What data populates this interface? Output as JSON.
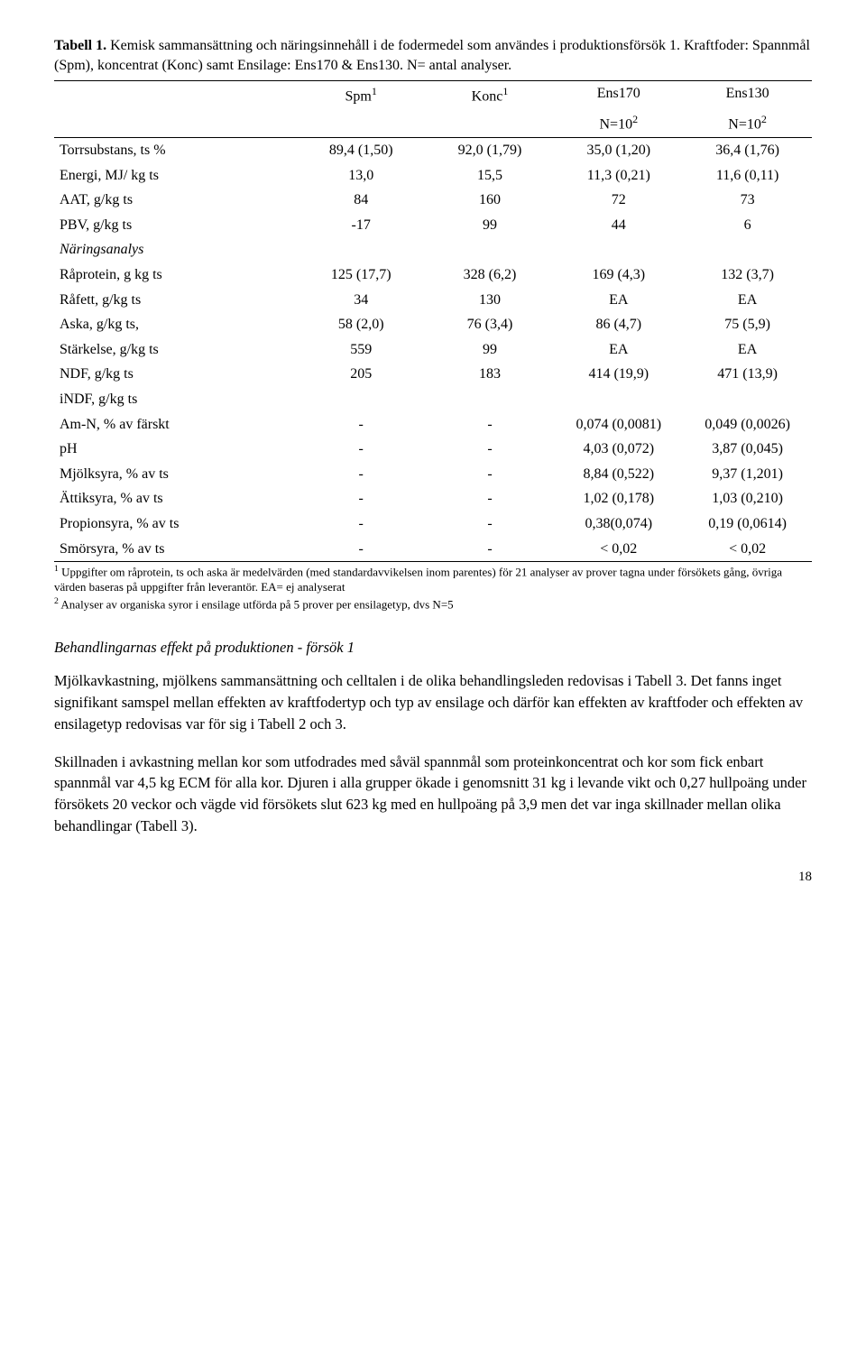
{
  "caption": {
    "label": "Tabell 1.",
    "text": " Kemisk sammansättning och näringsinnehåll i de fodermedel som användes i produktionsförsök 1. Kraftfoder: Spannmål (Spm), koncentrat (Konc) samt Ensilage: Ens170 & Ens130. N= antal analyser."
  },
  "table": {
    "col_widths": [
      "32%",
      "17%",
      "17%",
      "17%",
      "17%"
    ],
    "header": {
      "c1": "",
      "c2": "Spm",
      "c2_sup": "1",
      "c3": "Konc",
      "c3_sup": "1",
      "c4": "Ens170",
      "c5": "Ens130"
    },
    "subheader": {
      "c4": "N=10",
      "c4_sup": "2",
      "c5": "N=10",
      "c5_sup": "2"
    },
    "rows": [
      {
        "label": "Torrsubstans, ts %",
        "c2": "89,4 (1,50)",
        "c3": "92,0 (1,79)",
        "c4": "35,0 (1,20)",
        "c5": "36,4 (1,76)"
      },
      {
        "label": "Energi, MJ/ kg ts",
        "c2": "13,0",
        "c3": "15,5",
        "c4": "11,3 (0,21)",
        "c5": "11,6 (0,11)"
      },
      {
        "label": "AAT, g/kg ts",
        "c2": "84",
        "c3": "160",
        "c4": "72",
        "c5": "73"
      },
      {
        "label": "PBV, g/kg ts",
        "c2": "-17",
        "c3": "99",
        "c4": "44",
        "c5": "6"
      },
      {
        "label": "Näringsanalys",
        "italic": true,
        "c2": "",
        "c3": "",
        "c4": "",
        "c5": ""
      },
      {
        "label": "Råprotein, g kg ts",
        "c2": "125 (17,7)",
        "c3": "328 (6,2)",
        "c4": "169 (4,3)",
        "c5": "132 (3,7)"
      },
      {
        "label": "Råfett, g/kg ts",
        "c2": "34",
        "c3": "130",
        "c4": "EA",
        "c5": "EA"
      },
      {
        "label": "Aska, g/kg ts,",
        "c2": "58 (2,0)",
        "c3": "76 (3,4)",
        "c4": "86 (4,7)",
        "c5": "75 (5,9)"
      },
      {
        "label": "Stärkelse, g/kg ts",
        "c2": "559",
        "c3": "99",
        "c4": "EA",
        "c5": "EA"
      },
      {
        "label": "NDF, g/kg ts",
        "c2": "205",
        "c3": "183",
        "c4": "414 (19,9)",
        "c5": "471 (13,9)"
      },
      {
        "label": "iNDF, g/kg ts",
        "c2": "",
        "c3": "",
        "c4": "",
        "c5": ""
      },
      {
        "label": "Am-N, % av färskt",
        "c2": "-",
        "c3": "-",
        "c4": "0,074 (0,0081)",
        "c5": "0,049 (0,0026)"
      },
      {
        "label": "pH",
        "c2": "-",
        "c3": "-",
        "c4": "4,03 (0,072)",
        "c5": "3,87 (0,045)"
      },
      {
        "label": "Mjölksyra, % av ts",
        "c2": "-",
        "c3": "-",
        "c4": "8,84 (0,522)",
        "c5": "9,37 (1,201)"
      },
      {
        "label": "Ättiksyra, % av ts",
        "c2": "-",
        "c3": "-",
        "c4": "1,02 (0,178)",
        "c5": "1,03 (0,210)"
      },
      {
        "label": "Propionsyra, % av ts",
        "c2": "-",
        "c3": "-",
        "c4": "0,38(0,074)",
        "c5": "0,19 (0,0614)"
      },
      {
        "label": "Smörsyra, % av ts",
        "c2": "-",
        "c3": "-",
        "c4": "< 0,02",
        "c5": "< 0,02",
        "last": true
      }
    ]
  },
  "footnotes": {
    "f1_sup": "1",
    "f1": " Uppgifter om råprotein, ts och aska är medelvärden (med standardavvikelsen inom parentes) för 21 analyser av prover tagna under försökets gång, övriga värden baseras på uppgifter från leverantör. EA= ej analyserat",
    "f2_sup": "2",
    "f2": " Analyser av organiska syror i ensilage utförda på 5 prover per ensilagetyp, dvs N=5"
  },
  "section_heading": "Behandlingarnas effekt på produktionen - försök 1",
  "para1": "Mjölkavkastning, mjölkens sammansättning och celltalen i de olika behandlingsleden redovisas i Tabell 3. Det fanns inget signifikant samspel mellan effekten av kraftfodertyp och typ av ensilage och därför kan effekten av kraftfoder och effekten av ensilagetyp redovisas var för sig i Tabell 2 och 3.",
  "para2": "Skillnaden i avkastning mellan kor som utfodrades med såväl spannmål som proteinkoncentrat och kor som fick enbart spannmål var 4,5 kg ECM för alla kor. Djuren i alla grupper ökade i genomsnitt 31 kg i levande vikt och 0,27 hullpoäng under försökets 20 veckor och vägde vid försökets slut 623 kg med en hullpoäng på 3,9 men det var inga skillnader mellan olika behandlingar (Tabell 3).",
  "page_number": "18"
}
